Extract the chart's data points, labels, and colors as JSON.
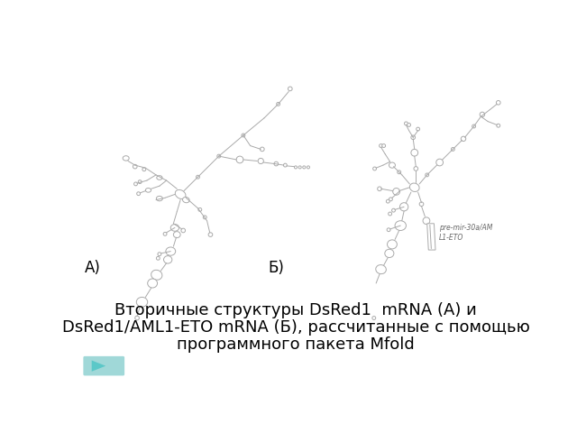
{
  "background_color": "#ffffff",
  "label_A": "А)",
  "label_B": "Б)",
  "title_line1": "Вторичные структуры DsRed1  mRNA (А) и",
  "title_line2": "DsRed1/AML1-ETO mRNA (Б), рассчитанные с помощью",
  "title_line3": "программного пакета Mfold",
  "annotation": "pre-mir-30a/AM\nL1-ETO",
  "title_fontsize": 13,
  "label_fontsize": 12,
  "line_color": "#aaaaaa",
  "node_color": "#cccccc",
  "play_color": "#5bc8c8",
  "play_bg": "#a0d8d8"
}
